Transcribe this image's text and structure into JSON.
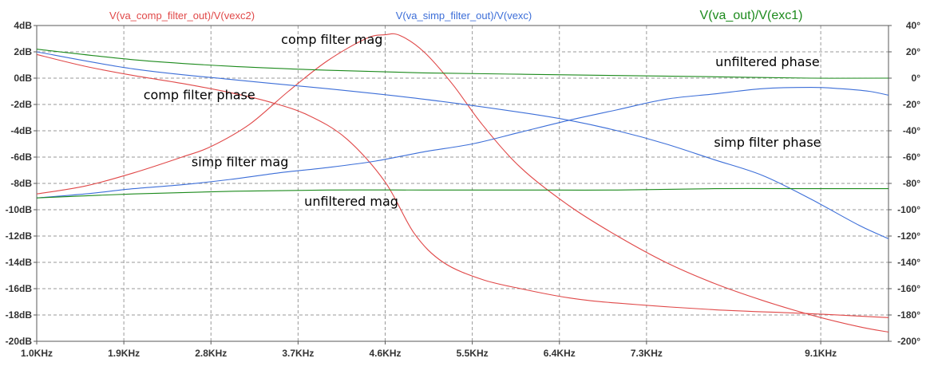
{
  "chart_data": {
    "type": "line",
    "x_unit": "Hz",
    "xlim": [
      1000,
      9800
    ],
    "x_ticks": [
      {
        "value": 1000,
        "label": "1.0KHz"
      },
      {
        "value": 1900,
        "label": "1.9KHz"
      },
      {
        "value": 2800,
        "label": "2.8KHz"
      },
      {
        "value": 3700,
        "label": "3.7KHz"
      },
      {
        "value": 4600,
        "label": "4.6KHz"
      },
      {
        "value": 5500,
        "label": "5.5KHz"
      },
      {
        "value": 6400,
        "label": "6.4KHz"
      },
      {
        "value": 7300,
        "label": "7.3KHz"
      },
      {
        "value": 9100,
        "label": "9.1KHz"
      }
    ],
    "y_left": {
      "unit": "dB",
      "ylim": [
        -20,
        4
      ],
      "ticks": [
        {
          "value": 4,
          "label": "4dB"
        },
        {
          "value": 2,
          "label": "2dB"
        },
        {
          "value": 0,
          "label": "0dB"
        },
        {
          "value": -2,
          "label": "-2dB"
        },
        {
          "value": -4,
          "label": "-4dB"
        },
        {
          "value": -6,
          "label": "-6dB"
        },
        {
          "value": -8,
          "label": "-8dB"
        },
        {
          "value": -10,
          "label": "-10dB"
        },
        {
          "value": -12,
          "label": "-12dB"
        },
        {
          "value": -14,
          "label": "-14dB"
        },
        {
          "value": -16,
          "label": "-16dB"
        },
        {
          "value": -18,
          "label": "-18dB"
        },
        {
          "value": -20,
          "label": "-20dB"
        }
      ]
    },
    "y_right": {
      "unit": "degrees",
      "ylim": [
        -200,
        40
      ],
      "ticks": [
        {
          "value": 40,
          "label": "40°"
        },
        {
          "value": 20,
          "label": "20°"
        },
        {
          "value": 0,
          "label": "0°"
        },
        {
          "value": -20,
          "label": "-20°"
        },
        {
          "value": -40,
          "label": "-40°"
        },
        {
          "value": -60,
          "label": "-60°"
        },
        {
          "value": -80,
          "label": "-80°"
        },
        {
          "value": -100,
          "label": "-100°"
        },
        {
          "value": -120,
          "label": "-120°"
        },
        {
          "value": -140,
          "label": "-140°"
        },
        {
          "value": -160,
          "label": "-160°"
        },
        {
          "value": -180,
          "label": "-180°"
        },
        {
          "value": -200,
          "label": "-200°"
        }
      ]
    },
    "grid": true,
    "legend": "top",
    "series": [
      {
        "name": "V(va_comp_filter_out)/V(vexc2)",
        "color": "#e04848",
        "magnitude_db": [
          [
            1000,
            -8.8
          ],
          [
            1500,
            -8.2
          ],
          [
            2000,
            -7.2
          ],
          [
            2500,
            -6.0
          ],
          [
            2800,
            -5.2
          ],
          [
            3200,
            -3.5
          ],
          [
            3600,
            -1.0
          ],
          [
            4000,
            1.3
          ],
          [
            4400,
            3.0
          ],
          [
            4600,
            3.3
          ],
          [
            4750,
            3.25
          ],
          [
            5000,
            2.0
          ],
          [
            5300,
            -0.5
          ],
          [
            5600,
            -3.5
          ],
          [
            6000,
            -6.8
          ],
          [
            6500,
            -9.7
          ],
          [
            7000,
            -12.0
          ],
          [
            7500,
            -14.0
          ],
          [
            8000,
            -15.6
          ],
          [
            8500,
            -16.9
          ],
          [
            9000,
            -18.0
          ],
          [
            9500,
            -18.9
          ],
          [
            9800,
            -19.3
          ]
        ],
        "phase_deg": [
          [
            1000,
            18
          ],
          [
            1500,
            9
          ],
          [
            2000,
            2
          ],
          [
            2500,
            -4
          ],
          [
            3000,
            -11
          ],
          [
            3400,
            -18
          ],
          [
            3800,
            -28
          ],
          [
            4200,
            -46
          ],
          [
            4600,
            -79
          ],
          [
            4900,
            -118
          ],
          [
            5200,
            -140
          ],
          [
            5600,
            -153
          ],
          [
            6000,
            -160
          ],
          [
            6500,
            -167
          ],
          [
            7000,
            -171
          ],
          [
            8000,
            -176
          ],
          [
            9000,
            -179
          ],
          [
            9800,
            -182
          ]
        ]
      },
      {
        "name": "V(va_simp_filter_out)/V(vexc)",
        "color": "#3c6ed8",
        "magnitude_db": [
          [
            1000,
            -9.1
          ],
          [
            1500,
            -8.8
          ],
          [
            2000,
            -8.4
          ],
          [
            2500,
            -8.1
          ],
          [
            3000,
            -7.7
          ],
          [
            3500,
            -7.2
          ],
          [
            4000,
            -6.8
          ],
          [
            4500,
            -6.3
          ],
          [
            5000,
            -5.6
          ],
          [
            5500,
            -5.0
          ],
          [
            6000,
            -4.1
          ],
          [
            6500,
            -3.2
          ],
          [
            7000,
            -2.4
          ],
          [
            7500,
            -1.6
          ],
          [
            8000,
            -1.2
          ],
          [
            8500,
            -0.8
          ],
          [
            9000,
            -0.7
          ],
          [
            9300,
            -0.8
          ],
          [
            9600,
            -1.0
          ],
          [
            9800,
            -1.3
          ]
        ],
        "phase_deg": [
          [
            1000,
            20
          ],
          [
            2000,
            7
          ],
          [
            3000,
            -1
          ],
          [
            4000,
            -8
          ],
          [
            5000,
            -16
          ],
          [
            6000,
            -26
          ],
          [
            6500,
            -32
          ],
          [
            7000,
            -40
          ],
          [
            7500,
            -50
          ],
          [
            8000,
            -62
          ],
          [
            8500,
            -74
          ],
          [
            9000,
            -92
          ],
          [
            9500,
            -112
          ],
          [
            9800,
            -122
          ]
        ]
      },
      {
        "name": "V(va_out)/V(exc1)",
        "color": "#1c8a1c",
        "magnitude_db": [
          [
            1000,
            -9.1
          ],
          [
            2000,
            -8.8
          ],
          [
            3000,
            -8.6
          ],
          [
            4000,
            -8.5
          ],
          [
            5000,
            -8.5
          ],
          [
            6000,
            -8.5
          ],
          [
            7000,
            -8.5
          ],
          [
            8000,
            -8.4
          ],
          [
            9000,
            -8.4
          ],
          [
            9800,
            -8.4
          ]
        ],
        "phase_deg": [
          [
            1000,
            22
          ],
          [
            2000,
            14
          ],
          [
            3000,
            9
          ],
          [
            4000,
            6
          ],
          [
            5000,
            4
          ],
          [
            6000,
            3
          ],
          [
            7000,
            2
          ],
          [
            8000,
            1
          ],
          [
            9000,
            0
          ],
          [
            9800,
            0
          ]
        ]
      }
    ],
    "annotations": [
      {
        "text": "comp filter mag",
        "x": 4050,
        "y_db": 2.9
      },
      {
        "text": "comp filter phase",
        "x": 2680,
        "y_db": -1.3
      },
      {
        "text": "simp filter mag",
        "x": 3100,
        "y_db": -6.4
      },
      {
        "text": "unfiltered mag",
        "x": 4250,
        "y_db": -9.4
      },
      {
        "text": "unfiltered phase",
        "x": 8550,
        "y_db": 1.2
      },
      {
        "text": "simp filter phase",
        "x": 8550,
        "y_db": -4.9
      }
    ]
  }
}
